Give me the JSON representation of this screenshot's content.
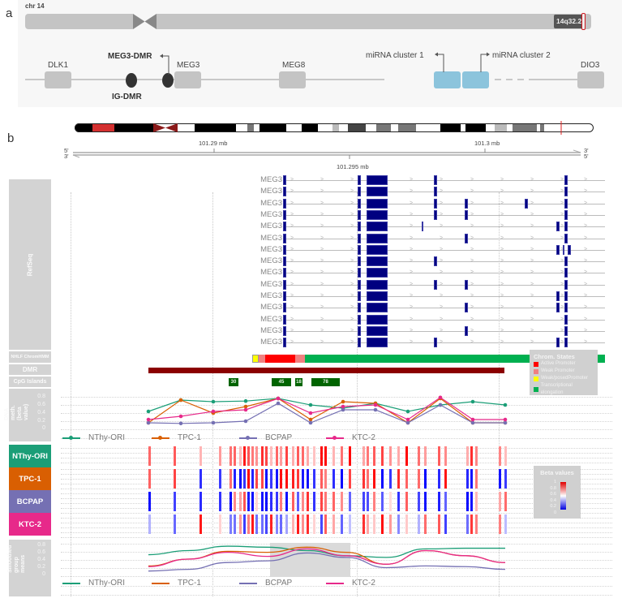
{
  "panel_a": {
    "label": "a",
    "chromosome": {
      "name": "chr 14",
      "band": "14q32.2",
      "color_arm": "#c4c4c4",
      "color_band_box": "#555555",
      "marker_color": "#d0181f"
    },
    "genes": [
      {
        "name": "DLK1",
        "type": "gene"
      },
      {
        "name": "MEG3",
        "type": "gene"
      },
      {
        "name": "MEG8",
        "type": "gene"
      },
      {
        "name": "DIO3",
        "type": "gene"
      }
    ],
    "mirna_clusters": [
      {
        "name": "miRNA cluster 1",
        "direction": "left"
      },
      {
        "name": "miRNA cluster 2",
        "direction": "right"
      }
    ],
    "dmrs": [
      {
        "name": "IG-DMR"
      },
      {
        "name": "MEG3-DMR"
      }
    ],
    "colors": {
      "gene": "#c4c4c4",
      "mirna": "#8cc4dc",
      "dmr": "#333333"
    }
  },
  "panel_b": {
    "label": "b",
    "axis": {
      "ticks_top": [
        "101.29 mb",
        "101.3 mb"
      ],
      "tick_bottom": "101.295 mb",
      "strand_top_left": "5'",
      "strand_top_right": "3'",
      "strand_bottom_left": "3'",
      "strand_bottom_right": "5'"
    },
    "tracks": {
      "refseq": {
        "label": "RefSeq",
        "transcripts": [
          "MEG3",
          "MEG3",
          "MEG3",
          "MEG3",
          "MEG3",
          "MEG3",
          "MEG3",
          "MEG3",
          "MEG3",
          "MEG3",
          "MEG3",
          "MEG3",
          "MEG3",
          "MEG3",
          "MEG3"
        ],
        "exon_color": "#000080"
      },
      "chromhmm": {
        "label": "NHLF ChromHMM",
        "legend_title": "Chrom. States",
        "states": [
          {
            "name": "Active Promoter",
            "color": "#ff0000"
          },
          {
            "name": "Weak Promoter",
            "color": "#f08080"
          },
          {
            "name": "Weak/posedPromoter",
            "color": "#ffff00"
          },
          {
            "name": "Transcriptional elongation",
            "color": "#00b050"
          }
        ]
      },
      "dmr": {
        "label": "DMR",
        "color": "#8b0000"
      },
      "cpg": {
        "label": "CpG Islands",
        "islands": [
          "30",
          "45",
          "18",
          "78"
        ],
        "color": "#006400"
      },
      "dna_meth": {
        "label": "DNA meth. (beta value)",
        "yticks": [
          "0.8",
          "0.6",
          "0.4",
          "0.2",
          "0"
        ]
      },
      "heatmap": {
        "legend_title": "Beta values",
        "legend_ticks": [
          "1",
          "0.8",
          "0.6",
          "0.4",
          "0.2",
          "0"
        ]
      },
      "smoothed": {
        "label": "Smoothed group means",
        "yticks": [
          "0.8",
          "0.6",
          "0.4",
          "0.2",
          "0"
        ]
      }
    },
    "samples": [
      {
        "name": "NThy-ORI",
        "color": "#1b9e77"
      },
      {
        "name": "TPC-1",
        "color": "#d95f02"
      },
      {
        "name": "BCPAP",
        "color": "#7570b3"
      },
      {
        "name": "KTC-2",
        "color": "#e7298a"
      }
    ]
  },
  "chart_data": [
    {
      "type": "line",
      "title": "DNA meth. (beta value)",
      "ylabel": "DNA meth. (beta value)",
      "ylim": [
        0,
        1
      ],
      "x_index": [
        1,
        2,
        3,
        4,
        5,
        6,
        7,
        8,
        9,
        10,
        11,
        12
      ],
      "series": [
        {
          "name": "NThy-ORI",
          "values": [
            0.55,
            0.9,
            0.85,
            0.87,
            0.95,
            0.75,
            0.65,
            0.8,
            0.55,
            0.75,
            0.85,
            0.75
          ]
        },
        {
          "name": "TPC-1",
          "values": [
            0.2,
            0.9,
            0.5,
            0.7,
            0.95,
            0.3,
            0.85,
            0.8,
            0.2,
            0.95,
            0.2,
            0.2
          ]
        },
        {
          "name": "BCPAP",
          "values": [
            0.2,
            0.18,
            0.2,
            0.25,
            0.8,
            0.2,
            0.6,
            0.6,
            0.2,
            0.75,
            0.2,
            0.2
          ]
        },
        {
          "name": "KTC-2",
          "values": [
            0.3,
            0.4,
            0.55,
            0.6,
            0.95,
            0.5,
            0.7,
            0.75,
            0.3,
            0.98,
            0.3,
            0.3
          ]
        }
      ],
      "legend_position": "bottom"
    },
    {
      "type": "line",
      "title": "Smoothed group means",
      "ylabel": "Smoothed group means",
      "ylim": [
        0,
        1
      ],
      "x_index": [
        1,
        2,
        3,
        4,
        5,
        6,
        7,
        8,
        9,
        10
      ],
      "series": [
        {
          "name": "NThy-ORI",
          "values": [
            0.63,
            0.75,
            0.88,
            0.85,
            0.75,
            0.6,
            0.55,
            0.8,
            0.82,
            0.82
          ]
        },
        {
          "name": "TPC-1",
          "values": [
            0.3,
            0.5,
            0.73,
            0.7,
            0.85,
            0.7,
            0.35,
            0.75,
            0.6,
            0.4
          ]
        },
        {
          "name": "BCPAP",
          "values": [
            0.15,
            0.2,
            0.4,
            0.45,
            0.68,
            0.55,
            0.25,
            0.3,
            0.28,
            0.2
          ]
        },
        {
          "name": "KTC-2",
          "values": [
            0.28,
            0.5,
            0.7,
            0.58,
            0.8,
            0.6,
            0.35,
            0.75,
            0.6,
            0.4
          ]
        }
      ],
      "legend_position": "bottom"
    }
  ]
}
